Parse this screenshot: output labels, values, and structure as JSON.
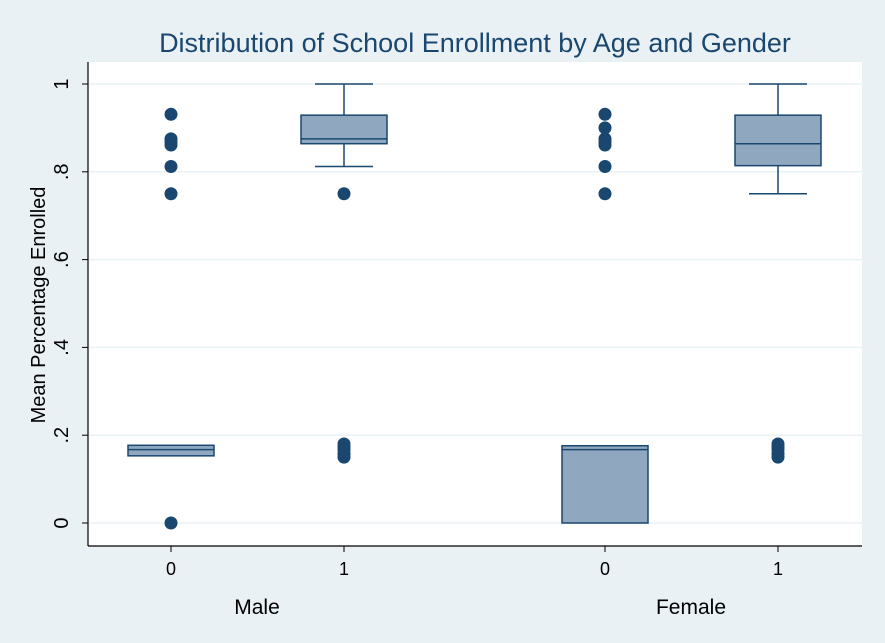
{
  "chart_data": {
    "type": "box",
    "title": "Distribution of School Enrollment by Age and Gender",
    "ylabel": "Mean Percentage Enrolled",
    "ylim": [
      0,
      1.05
    ],
    "yticks": [
      {
        "value": 0,
        "label": "0"
      },
      {
        "value": 0.2,
        "label": ".2"
      },
      {
        "value": 0.4,
        "label": ".4"
      },
      {
        "value": 0.6,
        "label": ".6"
      },
      {
        "value": 0.8,
        "label": ".8"
      },
      {
        "value": 1,
        "label": "1"
      }
    ],
    "grid": true,
    "box_fill": "#90a8bf",
    "box_stroke": "#1a476f",
    "groups": [
      {
        "name": "Male",
        "boxes": [
          {
            "category": "0",
            "q1": 0.153,
            "median": 0.167,
            "q3": 0.177,
            "whisker_low": 0.153,
            "whisker_high": 0.177,
            "outliers": [
              0.0,
              0.75,
              0.812,
              0.861,
              0.868,
              0.875,
              0.931
            ]
          },
          {
            "category": "1",
            "q1": 0.864,
            "median": 0.875,
            "q3": 0.929,
            "whisker_low": 0.812,
            "whisker_high": 1.0,
            "outliers": [
              0.15,
              0.158,
              0.167,
              0.173,
              0.18,
              0.75
            ]
          }
        ]
      },
      {
        "name": "Female",
        "boxes": [
          {
            "category": "0",
            "q1": 0.0,
            "median": 0.167,
            "q3": 0.176,
            "whisker_low": 0.0,
            "whisker_high": 0.176,
            "outliers": [
              0.75,
              0.812,
              0.861,
              0.868,
              0.875,
              0.9,
              0.931
            ]
          },
          {
            "category": "1",
            "q1": 0.814,
            "median": 0.864,
            "q3": 0.929,
            "whisker_low": 0.75,
            "whisker_high": 1.0,
            "outliers": [
              0.15,
              0.158,
              0.167,
              0.173,
              0.18
            ]
          }
        ]
      }
    ]
  }
}
